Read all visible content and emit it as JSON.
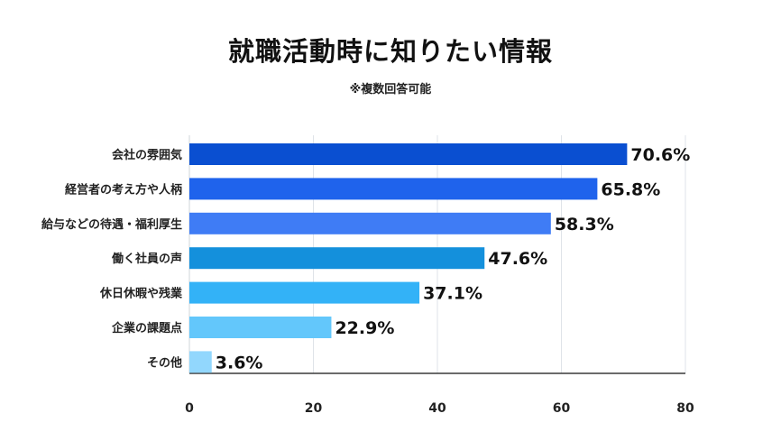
{
  "chart_data": {
    "type": "bar",
    "orientation": "horizontal",
    "title": "就職活動時に知りたい情報",
    "subtitle": "※複数回答可能",
    "categories": [
      "会社の雰囲気",
      "経営者の考え方や人柄",
      "給与などの待遇・福利厚生",
      "働く社員の声",
      "休日休暇や残業",
      "企業の課題点",
      "その他"
    ],
    "values": [
      70.6,
      65.8,
      58.3,
      47.6,
      37.1,
      22.9,
      3.6
    ],
    "value_labels": [
      "70.6%",
      "65.8%",
      "58.3%",
      "47.6%",
      "37.1%",
      "22.9%",
      "3.6%"
    ],
    "colors": [
      "#0a4fd1",
      "#1f63ec",
      "#3f7cf5",
      "#1490dc",
      "#33b2f7",
      "#63c7fb",
      "#92d7fd"
    ],
    "xlim": [
      0,
      80
    ],
    "x_ticks": [
      "0",
      "20",
      "40",
      "60",
      "80"
    ],
    "grid": true,
    "legend": "none"
  }
}
